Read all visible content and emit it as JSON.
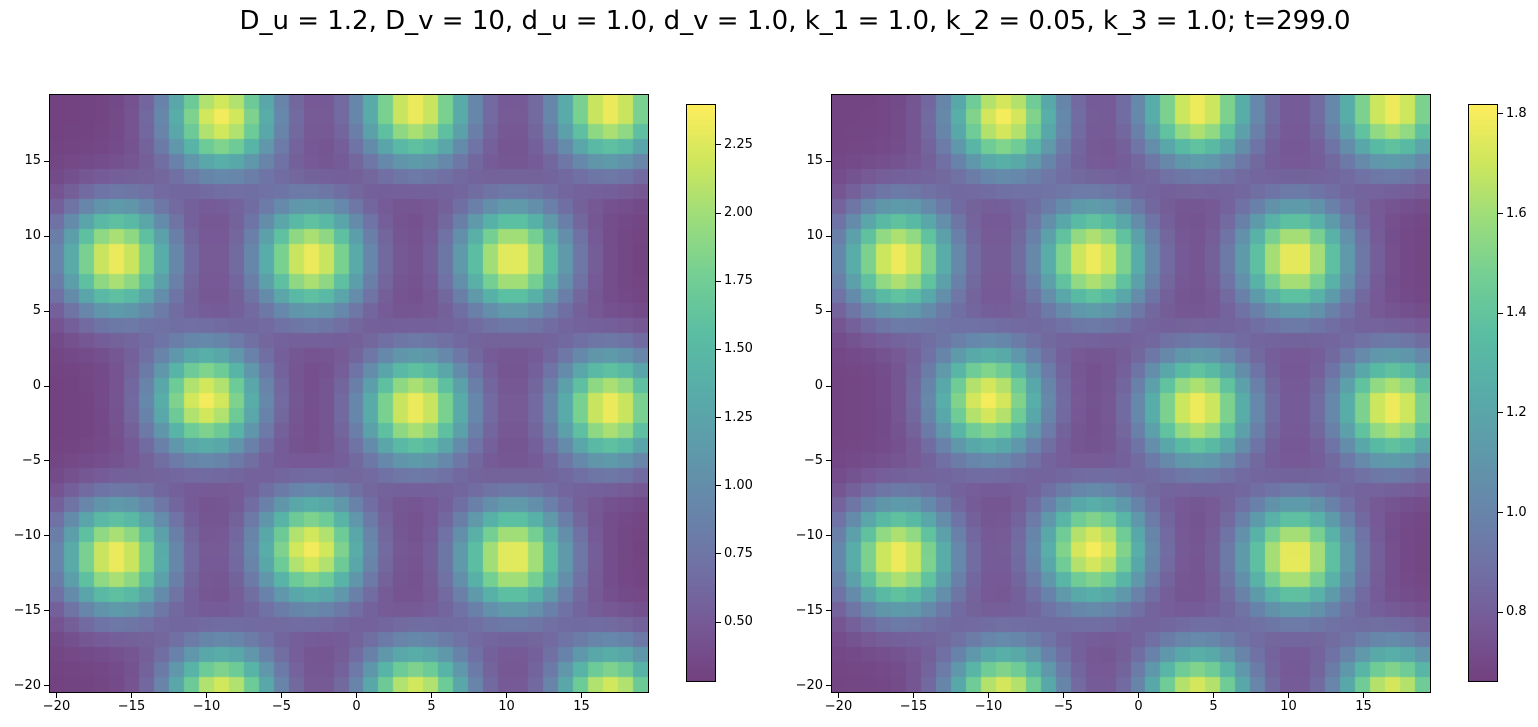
{
  "figure": {
    "suptitle": "D_u = 1.2, D_v = 10, d_u = 1.0, d_v = 1.0, k_1 = 1.0, k_2 = 0.05, k_3 = 1.0; t=299.0"
  },
  "colors": {
    "colormap": "viridis",
    "alpha": 0.75,
    "background": "#ffffff",
    "axes_edge": "#000000"
  },
  "chart_data": [
    {
      "type": "heatmap",
      "title": "",
      "xlabel": "",
      "ylabel": "",
      "xlim": [
        -20.5,
        19.5
      ],
      "ylim": [
        -20.5,
        19.5
      ],
      "grid_size": [
        40,
        40
      ],
      "xticks": [
        -20,
        -15,
        -10,
        -5,
        0,
        5,
        10,
        15
      ],
      "xtick_labels": [
        "−20",
        "−15",
        "−10",
        "−5",
        "0",
        "5",
        "10",
        "15"
      ],
      "yticks": [
        15,
        10,
        5,
        0,
        -5,
        -10,
        -15,
        -20
      ],
      "ytick_labels": [
        "15",
        "10",
        "5",
        "0",
        "−5",
        "−10",
        "−15",
        "−20"
      ],
      "colorbar": {
        "vmin": 0.28,
        "vmax": 2.4,
        "ticks": [
          0.5,
          0.75,
          1.0,
          1.25,
          1.5,
          1.75,
          2.0,
          2.25
        ],
        "tick_labels": [
          "0.50",
          "0.75",
          "1.00",
          "1.25",
          "1.50",
          "1.75",
          "2.00",
          "2.25"
        ]
      },
      "spot_centers": [
        [
          -9,
          18
        ],
        [
          4,
          18.5
        ],
        [
          17,
          18.5
        ],
        [
          -16,
          8.5
        ],
        [
          -3,
          8.5
        ],
        [
          10.5,
          8.5
        ],
        [
          -10,
          -1
        ],
        [
          4,
          -1.5
        ],
        [
          17,
          -1.5
        ],
        [
          -16,
          -11.5
        ],
        [
          -3,
          -11
        ],
        [
          10.5,
          -11.5
        ],
        [
          -9,
          -21
        ],
        [
          4,
          -21
        ],
        [
          17,
          -21
        ]
      ],
      "spot_peak": 2.35,
      "background_min": 0.3
    },
    {
      "type": "heatmap",
      "title": "",
      "xlabel": "",
      "ylabel": "",
      "xlim": [
        -20.5,
        19.5
      ],
      "ylim": [
        -20.5,
        19.5
      ],
      "grid_size": [
        40,
        40
      ],
      "xticks": [
        -20,
        -15,
        -10,
        -5,
        0,
        5,
        10,
        15
      ],
      "xtick_labels": [
        "−20",
        "−15",
        "−10",
        "−5",
        "0",
        "5",
        "10",
        "15"
      ],
      "yticks": [
        15,
        10,
        5,
        0,
        -5,
        -10,
        -15,
        -20
      ],
      "ytick_labels": [
        "15",
        "10",
        "5",
        "0",
        "−5",
        "−10",
        "−15",
        "−20"
      ],
      "colorbar": {
        "vmin": 0.66,
        "vmax": 1.82,
        "ticks": [
          0.8,
          1.0,
          1.2,
          1.4,
          1.6,
          1.8
        ],
        "tick_labels": [
          "0.8",
          "1.0",
          "1.2",
          "1.4",
          "1.6",
          "1.8"
        ]
      },
      "spot_centers": [
        [
          -9,
          18
        ],
        [
          4,
          18.5
        ],
        [
          17,
          18.5
        ],
        [
          -16,
          8.5
        ],
        [
          -3,
          8.5
        ],
        [
          10.5,
          8.5
        ],
        [
          -10,
          -1
        ],
        [
          4,
          -1.5
        ],
        [
          17,
          -1.5
        ],
        [
          -16,
          -11.5
        ],
        [
          -3,
          -11
        ],
        [
          10.5,
          -11.5
        ],
        [
          -9,
          -21
        ],
        [
          4,
          -21
        ],
        [
          17,
          -21
        ]
      ],
      "spot_peak": 1.8,
      "background_min": 0.68
    }
  ]
}
